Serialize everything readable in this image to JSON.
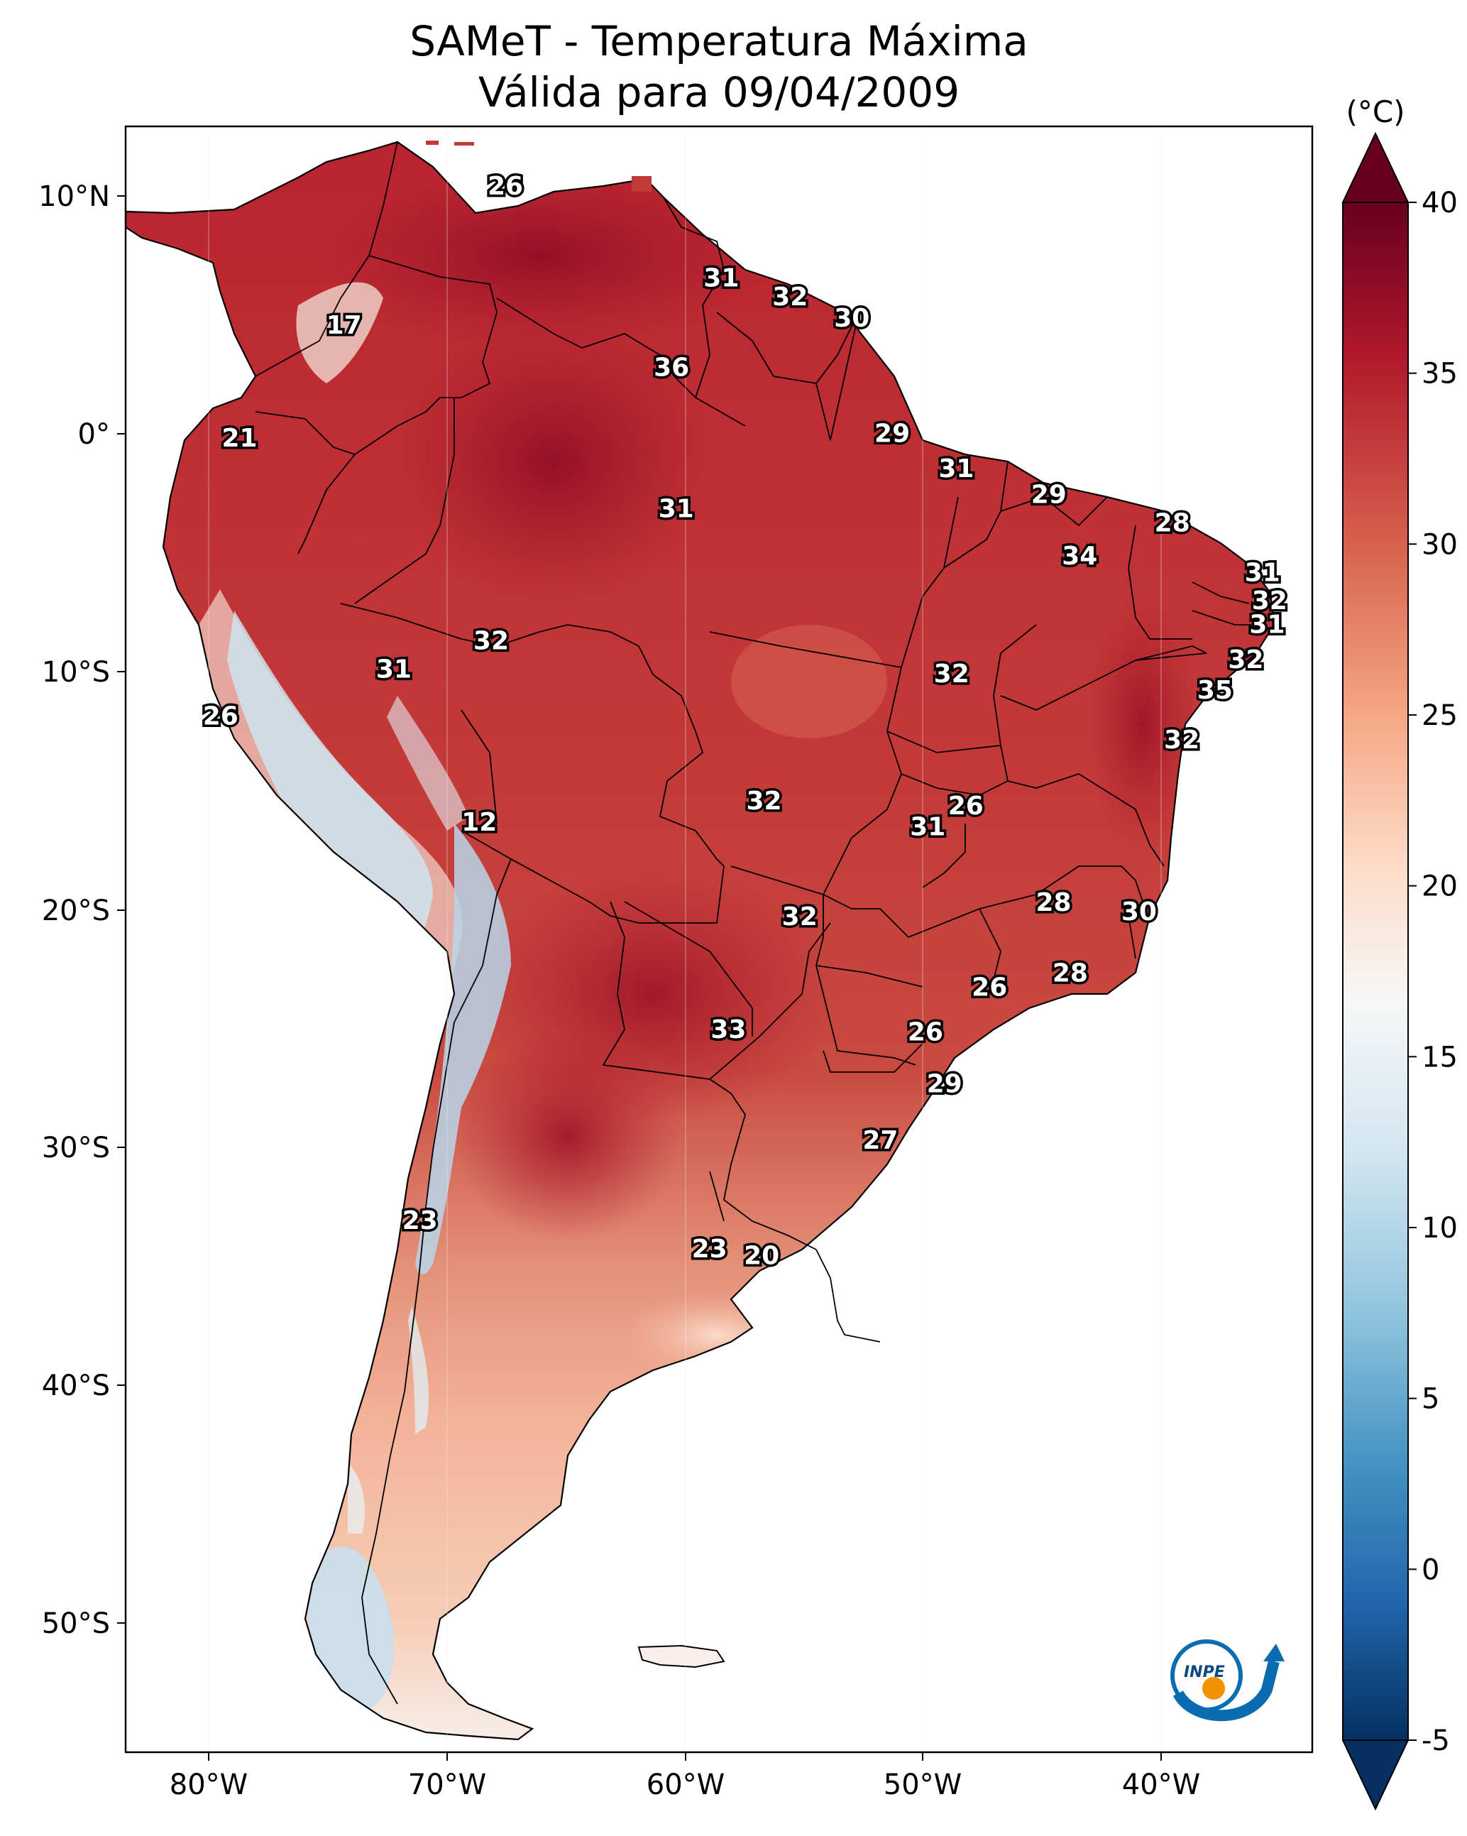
{
  "title": {
    "line1": "SAMeT - Temperatura Máxima",
    "line2": "Válida para 09/04/2009"
  },
  "colorbar": {
    "unit": "(°C)",
    "ticks": [
      "40",
      "35",
      "30",
      "25",
      "20",
      "15",
      "10",
      "5",
      "0",
      "-5"
    ],
    "colors": [
      "#67001f",
      "#b2182b",
      "#d6604d",
      "#f4a582",
      "#fddbc7",
      "#f7f7f7",
      "#d1e5f0",
      "#92c5de",
      "#4393c3",
      "#2166ac",
      "#053061"
    ]
  },
  "axes": {
    "lon_labels": [
      "80°W",
      "70°W",
      "60°W",
      "50°W",
      "40°W"
    ],
    "lat_labels": [
      "10°N",
      "0°",
      "10°S",
      "20°S",
      "30°S",
      "40°S",
      "50°S"
    ]
  },
  "logo": {
    "text": "INPE"
  },
  "chart_data": {
    "type": "heatmap",
    "variable": "Temperatura Máxima (°C)",
    "date": "09/04/2009",
    "xlim": [
      -83,
      -33
    ],
    "ylim": [
      -56,
      13
    ],
    "vmin": -5,
    "vmax": 40,
    "station_labels": [
      {
        "lon": -67.0,
        "lat": 10.5,
        "value": "26"
      },
      {
        "lon": -57.9,
        "lat": 6.6,
        "value": "31"
      },
      {
        "lon": -55.0,
        "lat": 5.8,
        "value": "32"
      },
      {
        "lon": -52.4,
        "lat": 4.9,
        "value": "30"
      },
      {
        "lon": -73.8,
        "lat": 4.6,
        "value": "17"
      },
      {
        "lon": -60.0,
        "lat": 2.8,
        "value": "36"
      },
      {
        "lon": -78.2,
        "lat": -0.2,
        "value": "21"
      },
      {
        "lon": -50.7,
        "lat": 0.0,
        "value": "29"
      },
      {
        "lon": -48.0,
        "lat": -1.5,
        "value": "31"
      },
      {
        "lon": -44.1,
        "lat": -2.6,
        "value": "29"
      },
      {
        "lon": -59.8,
        "lat": -3.2,
        "value": "31"
      },
      {
        "lon": -38.9,
        "lat": -3.8,
        "value": "28"
      },
      {
        "lon": -42.8,
        "lat": -5.2,
        "value": "34"
      },
      {
        "lon": -35.1,
        "lat": -5.9,
        "value": "31"
      },
      {
        "lon": -34.8,
        "lat": -7.1,
        "value": "32"
      },
      {
        "lon": -34.9,
        "lat": -8.1,
        "value": "31"
      },
      {
        "lon": -67.6,
        "lat": -8.8,
        "value": "32"
      },
      {
        "lon": -35.8,
        "lat": -9.6,
        "value": "32"
      },
      {
        "lon": -71.7,
        "lat": -10.0,
        "value": "31"
      },
      {
        "lon": -48.2,
        "lat": -10.2,
        "value": "32"
      },
      {
        "lon": -37.1,
        "lat": -10.9,
        "value": "35"
      },
      {
        "lon": -79.0,
        "lat": -12.0,
        "value": "26"
      },
      {
        "lon": -38.5,
        "lat": -13.0,
        "value": "32"
      },
      {
        "lon": -56.1,
        "lat": -15.6,
        "value": "32"
      },
      {
        "lon": -47.6,
        "lat": -15.8,
        "value": "26"
      },
      {
        "lon": -49.2,
        "lat": -16.7,
        "value": "31"
      },
      {
        "lon": -68.1,
        "lat": -16.5,
        "value": "12"
      },
      {
        "lon": -43.9,
        "lat": -19.9,
        "value": "28"
      },
      {
        "lon": -54.6,
        "lat": -20.5,
        "value": "32"
      },
      {
        "lon": -40.3,
        "lat": -20.3,
        "value": "30"
      },
      {
        "lon": -43.2,
        "lat": -22.9,
        "value": "28"
      },
      {
        "lon": -46.6,
        "lat": -23.5,
        "value": "26"
      },
      {
        "lon": -57.6,
        "lat": -25.3,
        "value": "33"
      },
      {
        "lon": -49.3,
        "lat": -25.4,
        "value": "26"
      },
      {
        "lon": -48.5,
        "lat": -27.6,
        "value": "29"
      },
      {
        "lon": -51.2,
        "lat": -30.0,
        "value": "27"
      },
      {
        "lon": -70.6,
        "lat": -33.4,
        "value": "23"
      },
      {
        "lon": -58.4,
        "lat": -34.6,
        "value": "23"
      },
      {
        "lon": -56.2,
        "lat": -34.9,
        "value": "20"
      }
    ]
  }
}
